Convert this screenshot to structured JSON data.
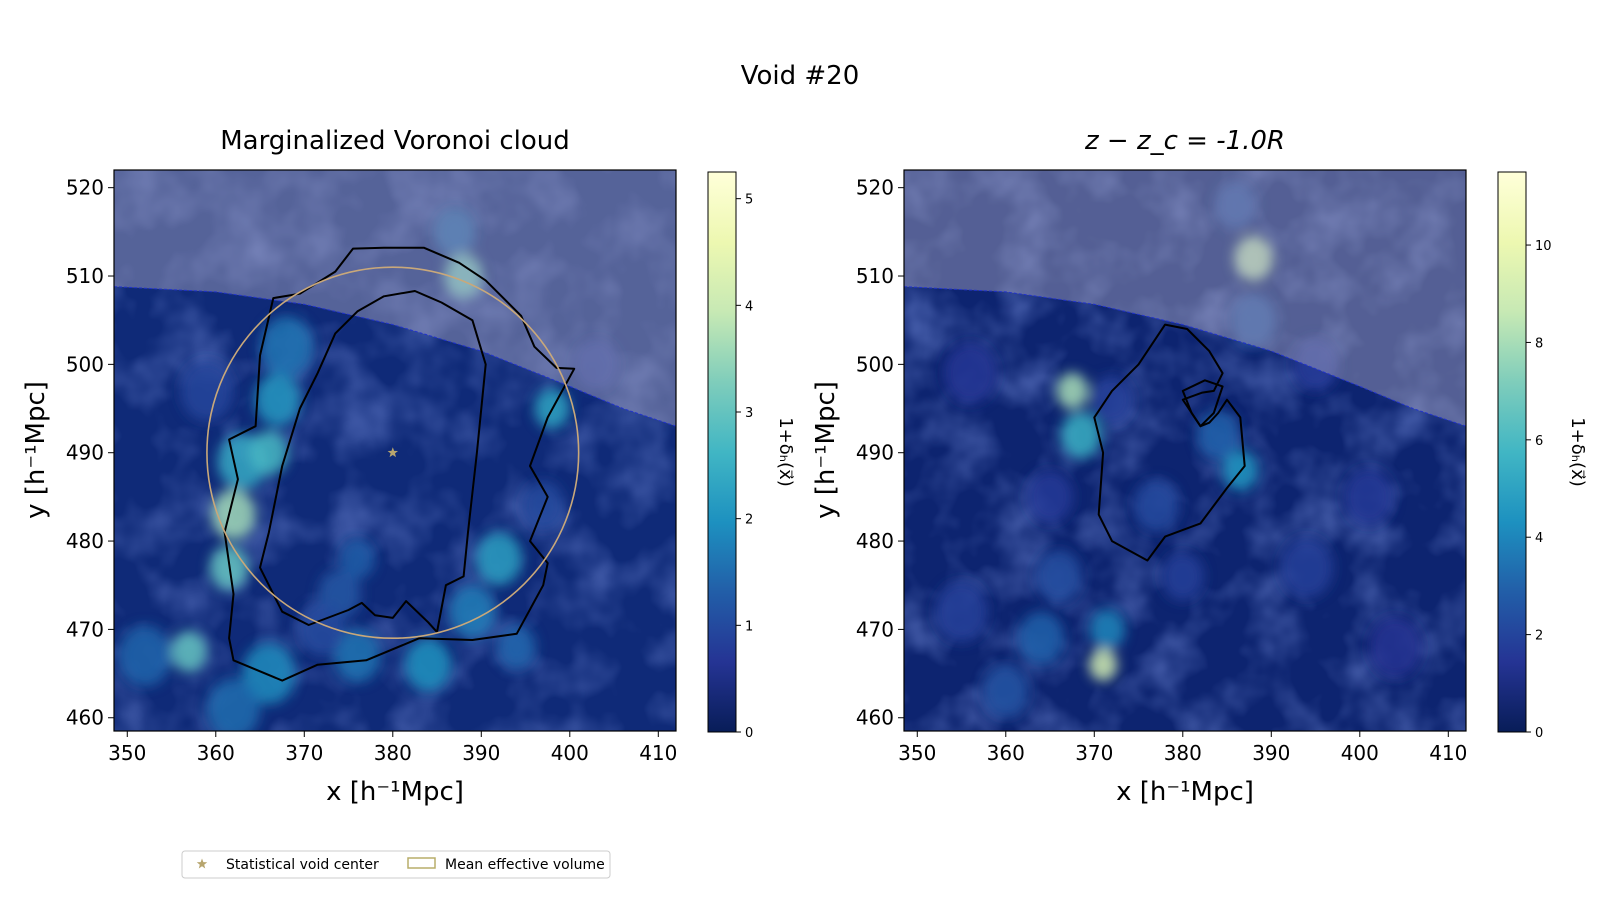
{
  "title": "Void #20",
  "chart_data": [
    {
      "type": "heatmap",
      "title": "Marginalized Voronoi cloud",
      "xlabel": "x [h⁻¹Mpc]",
      "ylabel": "y [h⁻¹Mpc]",
      "xlim": [
        348.5,
        412
      ],
      "ylim": [
        458.5,
        522
      ],
      "xticks": [
        350,
        360,
        370,
        380,
        390,
        400,
        410
      ],
      "yticks": [
        460,
        470,
        480,
        490,
        500,
        510,
        520
      ],
      "colorbar": {
        "label": "1+δₕ(x⃗)",
        "range": [
          0,
          5.25
        ],
        "ticks": [
          0,
          1,
          2,
          3,
          4,
          5
        ]
      },
      "boundary_curve": [
        [
          348.5,
          508.8
        ],
        [
          360,
          508.2
        ],
        [
          370,
          506.8
        ],
        [
          380,
          504.5
        ],
        [
          390,
          501.5
        ],
        [
          400,
          497.5
        ],
        [
          406,
          495
        ],
        [
          412,
          493
        ]
      ],
      "density_peaks": [
        {
          "x": 362,
          "y": 483,
          "v": 3.6,
          "r": 2.5
        },
        {
          "x": 361.5,
          "y": 477,
          "v": 3.0,
          "r": 2.2
        },
        {
          "x": 363,
          "y": 489,
          "v": 2.4,
          "r": 2.8
        },
        {
          "x": 366,
          "y": 490,
          "v": 2.7,
          "r": 2.2
        },
        {
          "x": 367,
          "y": 496,
          "v": 2.1,
          "r": 2.6
        },
        {
          "x": 368,
          "y": 502,
          "v": 1.6,
          "r": 3.0
        },
        {
          "x": 388,
          "y": 510,
          "v": 3.2,
          "r": 2.2
        },
        {
          "x": 387,
          "y": 515,
          "v": 1.4,
          "r": 2.4
        },
        {
          "x": 392,
          "y": 478,
          "v": 2.2,
          "r": 2.6
        },
        {
          "x": 389,
          "y": 472,
          "v": 1.7,
          "r": 2.6
        },
        {
          "x": 384,
          "y": 466,
          "v": 2.0,
          "r": 2.6
        },
        {
          "x": 376,
          "y": 467,
          "v": 1.6,
          "r": 2.6
        },
        {
          "x": 357,
          "y": 467.5,
          "v": 3.0,
          "r": 2.0
        },
        {
          "x": 366,
          "y": 465,
          "v": 1.9,
          "r": 3.0
        },
        {
          "x": 352,
          "y": 467,
          "v": 1.4,
          "r": 3.0
        },
        {
          "x": 398,
          "y": 495,
          "v": 2.3,
          "r": 2.0
        },
        {
          "x": 362,
          "y": 461,
          "v": 1.5,
          "r": 3.0
        },
        {
          "x": 374,
          "y": 474,
          "v": 1.2,
          "r": 2.4
        },
        {
          "x": 376,
          "y": 478,
          "v": 1.3,
          "r": 2.0
        },
        {
          "x": 394,
          "y": 468,
          "v": 1.4,
          "r": 2.2
        },
        {
          "x": 397,
          "y": 484,
          "v": 1.0,
          "r": 2.4
        },
        {
          "x": 359,
          "y": 497,
          "v": 0.9,
          "r": 3.0
        },
        {
          "x": 372,
          "y": 470,
          "v": 1.0,
          "r": 2.6
        },
        {
          "x": 403,
          "y": 500,
          "v": 0.8,
          "r": 2.6
        }
      ],
      "contours": [
        [
          [
            362,
            466.5
          ],
          [
            367.5,
            464.2
          ],
          [
            371.5,
            466
          ],
          [
            377,
            466.5
          ],
          [
            383,
            469
          ],
          [
            389,
            468.8
          ],
          [
            394,
            469.5
          ],
          [
            397,
            475
          ],
          [
            397.5,
            477.5
          ],
          [
            395.5,
            480
          ],
          [
            397.5,
            485
          ],
          [
            395.5,
            488.5
          ],
          [
            397.5,
            494
          ],
          [
            400.5,
            499.5
          ],
          [
            398.5,
            499.6
          ],
          [
            396,
            502
          ],
          [
            394.5,
            505.5
          ],
          [
            390.5,
            509.5
          ],
          [
            387.5,
            511.5
          ],
          [
            383.5,
            513.2
          ],
          [
            379,
            513.2
          ],
          [
            375.5,
            513.1
          ],
          [
            373.5,
            510.5
          ],
          [
            369.5,
            508
          ],
          [
            366.5,
            507.5
          ],
          [
            365,
            501
          ],
          [
            364.5,
            493
          ],
          [
            361.5,
            491.5
          ],
          [
            362.5,
            487
          ],
          [
            361,
            481
          ],
          [
            362,
            474
          ],
          [
            361.5,
            469
          ]
        ],
        [
          [
            370.5,
            470.5
          ],
          [
            375,
            472.2
          ],
          [
            376.5,
            473
          ],
          [
            378,
            471.6
          ],
          [
            380,
            471.3
          ],
          [
            381.5,
            473.2
          ],
          [
            384,
            470.8
          ],
          [
            385,
            469.7
          ],
          [
            386,
            475
          ],
          [
            388,
            476
          ],
          [
            388.5,
            481
          ],
          [
            389.5,
            490
          ],
          [
            390.5,
            500
          ],
          [
            389,
            505
          ],
          [
            385.5,
            507
          ],
          [
            382.5,
            508.3
          ],
          [
            379,
            507.7
          ],
          [
            376,
            506
          ],
          [
            373.5,
            503.5
          ],
          [
            371.5,
            499
          ],
          [
            369.5,
            495
          ],
          [
            367.5,
            488.5
          ],
          [
            366,
            481
          ],
          [
            365,
            477
          ],
          [
            367.5,
            472
          ]
        ]
      ],
      "effective_volume_circle": {
        "cx": 380,
        "cy": 490,
        "r": 21
      },
      "void_center": {
        "x": 380,
        "y": 490
      }
    },
    {
      "type": "heatmap",
      "title": "z − z_c = -1.0R",
      "xlabel": "x [h⁻¹Mpc]",
      "ylabel": "y [h⁻¹Mpc]",
      "xlim": [
        348.5,
        412
      ],
      "ylim": [
        458.5,
        522
      ],
      "xticks": [
        350,
        360,
        370,
        380,
        390,
        400,
        410
      ],
      "yticks": [
        460,
        470,
        480,
        490,
        500,
        510,
        520
      ],
      "colorbar": {
        "label": "1+δₕ(x⃗)",
        "range": [
          0,
          11.5
        ],
        "ticks": [
          0,
          2,
          4,
          6,
          8,
          10
        ]
      },
      "boundary_curve": [
        [
          348.5,
          508.8
        ],
        [
          360,
          508.2
        ],
        [
          370,
          506.8
        ],
        [
          380,
          504.5
        ],
        [
          390,
          501.5
        ],
        [
          400,
          497.5
        ],
        [
          406,
          495
        ],
        [
          412,
          493
        ]
      ],
      "density_peaks": [
        {
          "x": 388,
          "y": 512,
          "v": 8.5,
          "r": 2.2
        },
        {
          "x": 367.5,
          "y": 497,
          "v": 8.0,
          "r": 1.8
        },
        {
          "x": 368.5,
          "y": 492,
          "v": 5.5,
          "r": 2.3
        },
        {
          "x": 371,
          "y": 466,
          "v": 9.0,
          "r": 1.6
        },
        {
          "x": 371.5,
          "y": 470,
          "v": 4.0,
          "r": 2.0
        },
        {
          "x": 386.5,
          "y": 488,
          "v": 4.5,
          "r": 2.0
        },
        {
          "x": 384,
          "y": 492,
          "v": 3.0,
          "r": 2.4
        },
        {
          "x": 364,
          "y": 469,
          "v": 3.0,
          "r": 2.6
        },
        {
          "x": 360,
          "y": 463,
          "v": 2.6,
          "r": 2.6
        },
        {
          "x": 366,
          "y": 476,
          "v": 2.4,
          "r": 2.6
        },
        {
          "x": 377,
          "y": 484,
          "v": 2.2,
          "r": 2.6
        },
        {
          "x": 372,
          "y": 496,
          "v": 1.8,
          "r": 2.4
        },
        {
          "x": 388,
          "y": 505,
          "v": 2.6,
          "r": 2.6
        },
        {
          "x": 386,
          "y": 518,
          "v": 2.4,
          "r": 2.4
        },
        {
          "x": 355,
          "y": 472,
          "v": 1.8,
          "r": 3.0
        },
        {
          "x": 394,
          "y": 477,
          "v": 1.8,
          "r": 3.0
        },
        {
          "x": 401,
          "y": 485,
          "v": 1.6,
          "r": 2.8
        },
        {
          "x": 365,
          "y": 485,
          "v": 1.6,
          "r": 2.6
        },
        {
          "x": 380,
          "y": 476,
          "v": 1.8,
          "r": 2.4
        },
        {
          "x": 395,
          "y": 500,
          "v": 1.6,
          "r": 2.6
        },
        {
          "x": 356,
          "y": 499,
          "v": 1.5,
          "r": 3.0
        },
        {
          "x": 404,
          "y": 468,
          "v": 1.4,
          "r": 3.0
        }
      ],
      "contours": [
        [
          [
            370.5,
            483
          ],
          [
            371,
            490
          ],
          [
            370,
            494
          ],
          [
            372,
            497
          ],
          [
            375,
            500
          ],
          [
            378,
            504.5
          ],
          [
            380.5,
            504
          ],
          [
            383,
            501.5
          ],
          [
            384.5,
            499
          ],
          [
            383.5,
            497
          ],
          [
            382.2,
            496.8
          ],
          [
            380,
            496
          ],
          [
            382,
            493
          ],
          [
            383,
            493.4
          ],
          [
            384,
            494.5
          ],
          [
            385,
            496
          ],
          [
            386.5,
            494
          ],
          [
            387,
            488.5
          ],
          [
            385,
            486
          ],
          [
            382,
            482
          ],
          [
            378,
            480.5
          ],
          [
            376,
            477.8
          ],
          [
            372,
            480
          ]
        ],
        [
          [
            380,
            497
          ],
          [
            382.5,
            498.2
          ],
          [
            384.5,
            497.5
          ],
          [
            383.5,
            494.5
          ],
          [
            382,
            493
          ],
          [
            381,
            494.5
          ]
        ]
      ]
    }
  ],
  "legend": {
    "items": [
      {
        "label": "Statistical void center",
        "marker": "star",
        "color": "#b7a56e"
      },
      {
        "label": "Mean effective volume",
        "marker": "rect",
        "color": "#b8ad6a"
      }
    ],
    "placement": "bottom-left"
  },
  "colors": {
    "colormap": [
      "#081d58",
      "#253494",
      "#225ea8",
      "#1d91c0",
      "#41b6c4",
      "#7fcdbb",
      "#c7e9b4",
      "#edf8b1",
      "#ffffd9"
    ],
    "contour": "#000000",
    "circle": "#c9a87a",
    "boundary_line": "#2233cc",
    "mask_fill": "#b7b2c8"
  }
}
